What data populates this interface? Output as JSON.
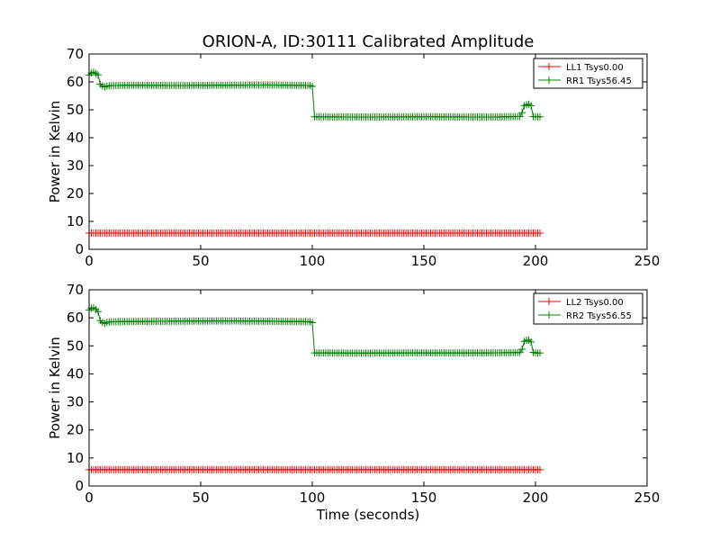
{
  "colors": {
    "ll": "#ff0000",
    "rr": "#008000",
    "frame": "#000000",
    "background": "#ffffff"
  },
  "chart_data": [
    {
      "type": "line",
      "title": "ORION-A, ID:30111 Calibrated Amplitude",
      "xlabel": "",
      "ylabel": "Power in Kelvin",
      "xlim": [
        0,
        250
      ],
      "ylim": [
        0,
        70
      ],
      "xticks": [
        "0",
        "50",
        "100",
        "150",
        "200",
        "250"
      ],
      "yticks": [
        "0",
        "10",
        "20",
        "30",
        "40",
        "50",
        "60",
        "70"
      ],
      "legend_position": "top-right",
      "grid": false,
      "marker": "plus",
      "series": [
        {
          "name": "LL1 Tsys0.00",
          "color": "#ff0000",
          "x": [
            0,
            202
          ],
          "y": [
            5.8,
            5.8
          ]
        },
        {
          "name": "RR1 Tsys56.45",
          "color": "#008000",
          "x": [
            0,
            1,
            2,
            3,
            4,
            5,
            6,
            7,
            8,
            10,
            20,
            40,
            60,
            80,
            99,
            100,
            101,
            120,
            150,
            180,
            193,
            194,
            195,
            196,
            197,
            198,
            199,
            200,
            201,
            202
          ],
          "y": [
            62.5,
            63.2,
            63.5,
            63.0,
            62.5,
            59.2,
            58.5,
            58.2,
            58.5,
            58.7,
            58.8,
            58.7,
            58.8,
            58.9,
            58.7,
            58.4,
            47.5,
            47.4,
            47.5,
            47.4,
            47.6,
            49.0,
            51.5,
            51.8,
            52.0,
            51.5,
            47.6,
            47.5,
            47.4,
            47.5
          ]
        }
      ]
    },
    {
      "type": "line",
      "title": "",
      "xlabel": "Time (seconds)",
      "ylabel": "Power in Kelvin",
      "xlim": [
        0,
        250
      ],
      "ylim": [
        0,
        70
      ],
      "xticks": [
        "0",
        "50",
        "100",
        "150",
        "200",
        "250"
      ],
      "yticks": [
        "0",
        "10",
        "20",
        "30",
        "40",
        "50",
        "60",
        "70"
      ],
      "legend_position": "top-right",
      "grid": false,
      "marker": "plus",
      "series": [
        {
          "name": "LL2 Tsys0.00",
          "color": "#ff0000",
          "x": [
            0,
            202
          ],
          "y": [
            5.8,
            5.8
          ]
        },
        {
          "name": "RR2 Tsys56.55",
          "color": "#008000",
          "x": [
            0,
            1,
            2,
            3,
            4,
            5,
            6,
            7,
            8,
            10,
            20,
            40,
            60,
            80,
            99,
            100,
            101,
            120,
            150,
            180,
            193,
            194,
            195,
            196,
            197,
            198,
            199,
            200,
            201,
            202
          ],
          "y": [
            62.8,
            63.4,
            63.6,
            63.0,
            62.2,
            59.0,
            58.3,
            58.0,
            58.4,
            58.6,
            58.7,
            58.8,
            58.9,
            58.8,
            58.6,
            58.3,
            47.5,
            47.4,
            47.5,
            47.5,
            47.6,
            48.8,
            51.6,
            52.0,
            52.1,
            51.4,
            47.7,
            47.5,
            47.4,
            47.5
          ]
        }
      ]
    }
  ]
}
